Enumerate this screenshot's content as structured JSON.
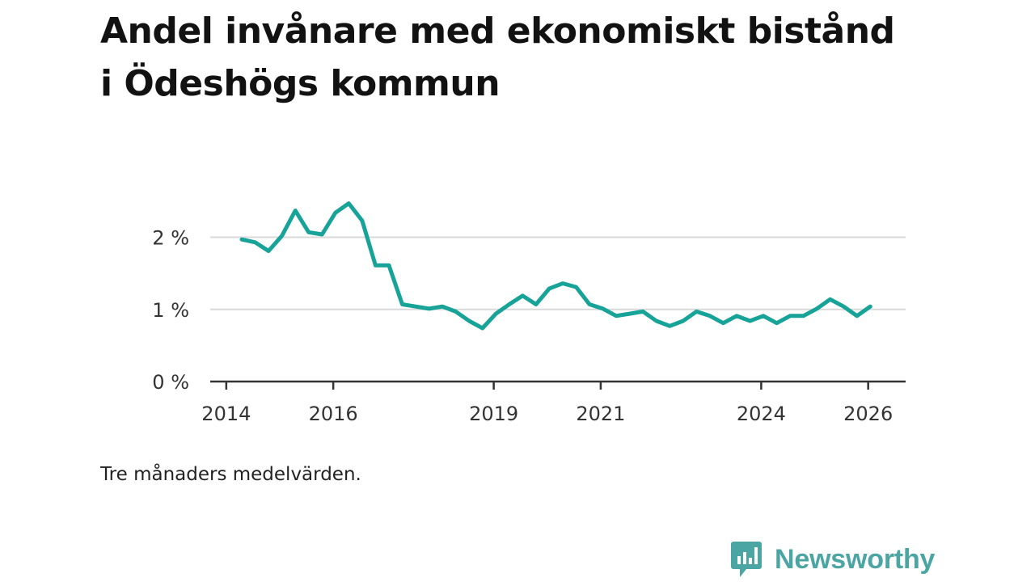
{
  "title": "Andel invånare med ekonomiskt bistånd i Ödeshögs kommun",
  "note": "Tre månaders medelvärden.",
  "brand": {
    "name": "Newsworthy",
    "icon": "newsworthy-logo-icon",
    "color": "#4aa5a3"
  },
  "colors": {
    "line": "#17a398",
    "grid": "#d9d9d9",
    "axis": "#333333"
  },
  "chart_data": {
    "type": "line",
    "title": "Andel invånare med ekonomiskt bistånd i Ödeshögs kommun",
    "xlabel": "",
    "ylabel": "",
    "xlim": [
      2013.7,
      2026.7
    ],
    "ylim": [
      0,
      2.6
    ],
    "grid": true,
    "x_ticks": [
      {
        "value": 2014.0,
        "label": "2014"
      },
      {
        "value": 2016.0,
        "label": "2016"
      },
      {
        "value": 2019.0,
        "label": "2019"
      },
      {
        "value": 2021.0,
        "label": "2021"
      },
      {
        "value": 2024.0,
        "label": "2024"
      },
      {
        "value": 2026.0,
        "label": "2026"
      }
    ],
    "y_ticks": [
      {
        "value": 0,
        "label": "0 %"
      },
      {
        "value": 1,
        "label": "1 %"
      },
      {
        "value": 2,
        "label": "2 %"
      }
    ],
    "series": [
      {
        "name": "Andel invånare med ekonomiskt bistånd",
        "x": [
          2014.29,
          2014.54,
          2014.79,
          2015.04,
          2015.29,
          2015.54,
          2015.79,
          2016.04,
          2016.29,
          2016.54,
          2016.79,
          2017.04,
          2017.29,
          2017.54,
          2017.79,
          2018.04,
          2018.29,
          2018.54,
          2018.79,
          2019.04,
          2019.29,
          2019.54,
          2019.79,
          2020.04,
          2020.29,
          2020.54,
          2020.79,
          2021.04,
          2021.29,
          2021.54,
          2021.79,
          2022.04,
          2022.29,
          2022.54,
          2022.79,
          2023.04,
          2023.29,
          2023.54,
          2023.79,
          2024.04,
          2024.29,
          2024.54,
          2024.79,
          2025.04,
          2025.29,
          2025.54,
          2025.79,
          2026.04
        ],
        "values": [
          1.97,
          1.93,
          1.81,
          2.02,
          2.37,
          2.07,
          2.04,
          2.34,
          2.47,
          2.23,
          1.61,
          1.61,
          1.07,
          1.04,
          1.01,
          1.04,
          0.97,
          0.84,
          0.74,
          0.94,
          1.07,
          1.19,
          1.07,
          1.29,
          1.36,
          1.31,
          1.07,
          1.01,
          0.91,
          0.94,
          0.97,
          0.84,
          0.77,
          0.84,
          0.97,
          0.91,
          0.81,
          0.91,
          0.84,
          0.91,
          0.81,
          0.91,
          0.91,
          1.01,
          1.14,
          1.04,
          0.91,
          1.04
        ]
      }
    ]
  }
}
